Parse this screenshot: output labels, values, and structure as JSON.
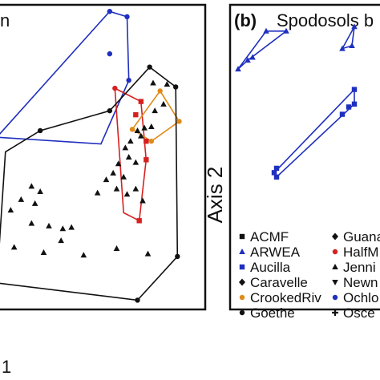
{
  "chart_data": [
    {
      "panel": "a",
      "type": "scatter",
      "title_fragment": "n",
      "axis_fragment": "1",
      "hulls": [
        {
          "name": "blue",
          "color": "#1f2fbf",
          "points": [
            [
              -0.6,
              0.05
            ],
            [
              0.05,
              1.0
            ],
            [
              0.15,
              0.96
            ],
            [
              0.16,
              0.48
            ],
            [
              0.0,
              0.0
            ]
          ]
        },
        {
          "name": "red",
          "color": "#d62020",
          "points": [
            [
              0.08,
              0.42
            ],
            [
              0.23,
              0.32
            ],
            [
              0.26,
              -0.12
            ],
            [
              0.22,
              -0.58
            ],
            [
              0.13,
              -0.52
            ]
          ]
        },
        {
          "name": "orange",
          "color": "#e08a1a",
          "points": [
            [
              0.18,
              0.11
            ],
            [
              0.34,
              0.4
            ],
            [
              0.45,
              0.17
            ],
            [
              0.29,
              0.02
            ]
          ]
        },
        {
          "name": "black",
          "color": "#111111",
          "points": [
            [
              -0.55,
              -0.06
            ],
            [
              -0.35,
              0.1
            ],
            [
              0.05,
              0.25
            ],
            [
              0.28,
              0.58
            ],
            [
              0.43,
              0.43
            ],
            [
              0.44,
              -0.85
            ],
            [
              0.21,
              -1.18
            ],
            [
              -0.6,
              -1.05
            ]
          ]
        }
      ],
      "points": [
        {
          "marker": "circle",
          "color": "#1f2fbf",
          "x": 0.05,
          "y": 0.68
        },
        {
          "marker": "circle",
          "color": "#1f2fbf",
          "x": 0.05,
          "y": 1.0
        },
        {
          "marker": "circle",
          "color": "#1f2fbf",
          "x": 0.16,
          "y": 0.48
        },
        {
          "marker": "circle",
          "color": "#1f2fbf",
          "x": 0.15,
          "y": 0.96
        },
        {
          "marker": "circle",
          "color": "#d62020",
          "x": 0.08,
          "y": 0.42
        },
        {
          "marker": "square",
          "color": "#d62020",
          "x": 0.23,
          "y": 0.32
        },
        {
          "marker": "square",
          "color": "#d62020",
          "x": 0.2,
          "y": 0.22
        },
        {
          "marker": "square",
          "color": "#d62020",
          "x": 0.26,
          "y": 0.02
        },
        {
          "marker": "square",
          "color": "#d62020",
          "x": 0.26,
          "y": -0.12
        },
        {
          "marker": "square",
          "color": "#d62020",
          "x": 0.22,
          "y": -0.58
        },
        {
          "marker": "circle",
          "color": "#e08a1a",
          "x": 0.34,
          "y": 0.4
        },
        {
          "marker": "circle",
          "color": "#e08a1a",
          "x": 0.45,
          "y": 0.17
        },
        {
          "marker": "circle",
          "color": "#e08a1a",
          "x": 0.18,
          "y": 0.11
        },
        {
          "marker": "circle",
          "color": "#e08a1a",
          "x": 0.29,
          "y": 0.02
        },
        {
          "marker": "triangle",
          "color": "#111111",
          "x": 0.3,
          "y": 0.46
        },
        {
          "marker": "triangle",
          "color": "#111111",
          "x": 0.38,
          "y": 0.45
        },
        {
          "marker": "triangle",
          "color": "#111111",
          "x": 0.36,
          "y": 0.3
        },
        {
          "marker": "triangle",
          "color": "#111111",
          "x": 0.31,
          "y": 0.25
        },
        {
          "marker": "triangle",
          "color": "#111111",
          "x": 0.29,
          "y": 0.13
        },
        {
          "marker": "triangle",
          "color": "#111111",
          "x": 0.25,
          "y": 0.12
        },
        {
          "marker": "triangle",
          "color": "#111111",
          "x": 0.21,
          "y": 0.1
        },
        {
          "marker": "triangle",
          "color": "#111111",
          "x": 0.23,
          "y": 0.06
        },
        {
          "marker": "triangle",
          "color": "#111111",
          "x": 0.17,
          "y": 0.02
        },
        {
          "marker": "triangle",
          "color": "#111111",
          "x": 0.14,
          "y": -0.03
        },
        {
          "marker": "triangle",
          "color": "#111111",
          "x": 0.16,
          "y": -0.1
        },
        {
          "marker": "triangle",
          "color": "#111111",
          "x": 0.1,
          "y": -0.15
        },
        {
          "marker": "triangle",
          "color": "#111111",
          "x": 0.2,
          "y": -0.14
        },
        {
          "marker": "triangle",
          "color": "#111111",
          "x": 0.07,
          "y": -0.22
        },
        {
          "marker": "triangle",
          "color": "#111111",
          "x": 0.13,
          "y": -0.25
        },
        {
          "marker": "triangle",
          "color": "#111111",
          "x": 0.03,
          "y": -0.27
        },
        {
          "marker": "triangle",
          "color": "#111111",
          "x": 0.09,
          "y": -0.34
        },
        {
          "marker": "triangle",
          "color": "#111111",
          "x": 0.2,
          "y": -0.34
        },
        {
          "marker": "triangle",
          "color": "#111111",
          "x": -0.02,
          "y": -0.37
        },
        {
          "marker": "triangle",
          "color": "#111111",
          "x": 0.15,
          "y": -0.38
        },
        {
          "marker": "triangle",
          "color": "#111111",
          "x": 0.24,
          "y": -0.43
        },
        {
          "marker": "triangle",
          "color": "#111111",
          "x": -0.4,
          "y": -0.32
        },
        {
          "marker": "triangle",
          "color": "#111111",
          "x": -0.35,
          "y": -0.36
        },
        {
          "marker": "triangle",
          "color": "#111111",
          "x": -0.46,
          "y": -0.42
        },
        {
          "marker": "triangle",
          "color": "#111111",
          "x": -0.38,
          "y": -0.45
        },
        {
          "marker": "triangle",
          "color": "#111111",
          "x": -0.52,
          "y": -0.5
        },
        {
          "marker": "triangle",
          "color": "#111111",
          "x": -0.4,
          "y": -0.6
        },
        {
          "marker": "triangle",
          "color": "#111111",
          "x": -0.3,
          "y": -0.62
        },
        {
          "marker": "triangle",
          "color": "#111111",
          "x": -0.22,
          "y": -0.64
        },
        {
          "marker": "triangle",
          "color": "#111111",
          "x": -0.17,
          "y": -0.63
        },
        {
          "marker": "triangle",
          "color": "#111111",
          "x": -0.23,
          "y": -0.73
        },
        {
          "marker": "triangle",
          "color": "#111111",
          "x": -0.33,
          "y": -0.82
        },
        {
          "marker": "triangle",
          "color": "#111111",
          "x": -0.5,
          "y": -0.78
        },
        {
          "marker": "triangle",
          "color": "#111111",
          "x": -0.1,
          "y": -0.84
        },
        {
          "marker": "triangle",
          "color": "#111111",
          "x": 0.09,
          "y": -0.79
        },
        {
          "marker": "triangle",
          "color": "#111111",
          "x": 0.27,
          "y": -0.83
        },
        {
          "marker": "circle",
          "color": "#111111",
          "x": -0.35,
          "y": 0.1
        },
        {
          "marker": "circle",
          "color": "#111111",
          "x": 0.05,
          "y": 0.25
        },
        {
          "marker": "circle",
          "color": "#111111",
          "x": 0.28,
          "y": 0.58
        },
        {
          "marker": "circle",
          "color": "#111111",
          "x": 0.43,
          "y": 0.43
        },
        {
          "marker": "circle",
          "color": "#111111",
          "x": 0.44,
          "y": -0.85
        },
        {
          "marker": "circle",
          "color": "#111111",
          "x": 0.21,
          "y": -1.18
        }
      ],
      "xlim": [
        -0.6,
        0.6
      ],
      "ylim": [
        -1.25,
        1.05
      ]
    },
    {
      "panel": "b",
      "type": "scatter",
      "label": "(b)",
      "title": "Spodosols b",
      "ylabel": "Axis 2",
      "hulls": [
        {
          "name": "ARWEA",
          "color": "#1f2fbf",
          "points": [
            [
              -0.9,
              0.66
            ],
            [
              -0.55,
              0.92
            ],
            [
              -0.3,
              0.92
            ],
            [
              -0.78,
              0.72
            ]
          ]
        },
        {
          "name": "ARWEA-2",
          "color": "#1f2fbf",
          "points": [
            [
              0.4,
              0.8
            ],
            [
              0.55,
              0.95
            ],
            [
              0.52,
              0.82
            ]
          ]
        },
        {
          "name": "Aucilla",
          "color": "#1f2fbf",
          "points": [
            [
              -0.45,
              -0.05
            ],
            [
              -0.42,
              -0.08
            ],
            [
              0.55,
              0.42
            ],
            [
              0.55,
              0.52
            ]
          ]
        }
      ],
      "points": [
        {
          "marker": "triangle",
          "color": "#1f2fbf",
          "x": -0.9,
          "y": 0.66
        },
        {
          "marker": "triangle",
          "color": "#1f2fbf",
          "x": -0.78,
          "y": 0.72
        },
        {
          "marker": "triangle",
          "color": "#1f2fbf",
          "x": -0.72,
          "y": 0.74
        },
        {
          "marker": "triangle",
          "color": "#1f2fbf",
          "x": -0.55,
          "y": 0.92
        },
        {
          "marker": "triangle",
          "color": "#1f2fbf",
          "x": -0.3,
          "y": 0.92
        },
        {
          "marker": "triangle",
          "color": "#1f2fbf",
          "x": 0.4,
          "y": 0.8
        },
        {
          "marker": "triangle",
          "color": "#1f2fbf",
          "x": 0.55,
          "y": 0.95
        },
        {
          "marker": "triangle",
          "color": "#1f2fbf",
          "x": 0.52,
          "y": 0.82
        },
        {
          "marker": "square",
          "color": "#1f2fbf",
          "x": -0.45,
          "y": -0.05
        },
        {
          "marker": "square",
          "color": "#1f2fbf",
          "x": -0.42,
          "y": -0.08
        },
        {
          "marker": "square",
          "color": "#1f2fbf",
          "x": -0.42,
          "y": -0.02
        },
        {
          "marker": "square",
          "color": "#1f2fbf",
          "x": 0.4,
          "y": 0.35
        },
        {
          "marker": "square",
          "color": "#1f2fbf",
          "x": 0.48,
          "y": 0.4
        },
        {
          "marker": "square",
          "color": "#1f2fbf",
          "x": 0.55,
          "y": 0.42
        },
        {
          "marker": "square",
          "color": "#1f2fbf",
          "x": 0.55,
          "y": 0.52
        }
      ],
      "xlim": [
        -1,
        1
      ],
      "ylim": [
        -0.35,
        1.1
      ],
      "legend": [
        {
          "label": "ACMF",
          "marker": "square",
          "color": "#111111"
        },
        {
          "label": "ARWEA",
          "marker": "triangle",
          "color": "#1f2fbf"
        },
        {
          "label": "Aucilla",
          "marker": "square",
          "color": "#1f2fbf"
        },
        {
          "label": "Caravelle",
          "marker": "diamond",
          "color": "#111111"
        },
        {
          "label": "CrookedRiv",
          "marker": "circle",
          "color": "#e08a1a"
        },
        {
          "label": "Goethe",
          "marker": "circle",
          "color": "#111111"
        },
        {
          "label": "Guana",
          "marker": "diamond",
          "color": "#111111"
        },
        {
          "label": "HalfM",
          "marker": "circle",
          "color": "#d62020"
        },
        {
          "label": "Jenni",
          "marker": "triangle",
          "color": "#111111"
        },
        {
          "label": "Newn",
          "marker": "triangle-down",
          "color": "#111111"
        },
        {
          "label": "Ochlo",
          "marker": "circle",
          "color": "#1f2fbf"
        },
        {
          "label": "Osce",
          "marker": "plus",
          "color": "#111111"
        }
      ]
    }
  ]
}
